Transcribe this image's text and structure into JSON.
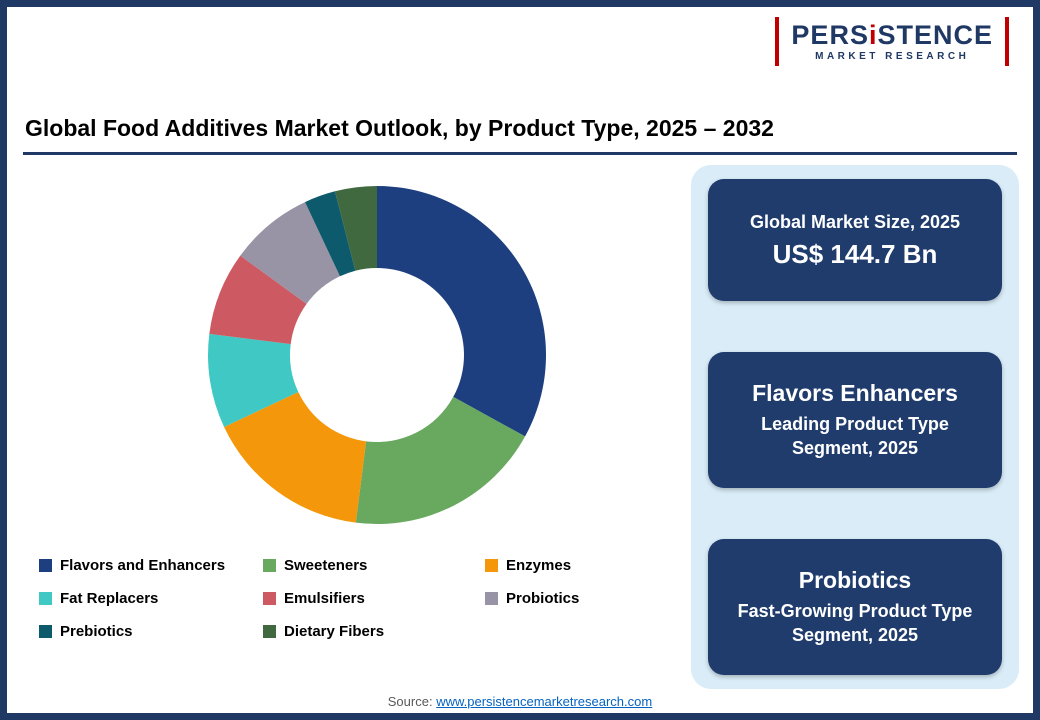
{
  "logo": {
    "part1": "PERS",
    "i_letter": "i",
    "part2": "STENCE",
    "subtitle": "MARKET RESEARCH"
  },
  "header": {
    "title": "Global Food Additives Market Outlook, by Product Type, 2025 – 2032"
  },
  "chart_data": {
    "type": "pie",
    "donut": true,
    "title": "Global Food Additives Market Outlook, by Product Type, 2025 – 2032",
    "categories": [
      "Flavors and Enhancers",
      "Sweeteners",
      "Enzymes",
      "Fat Replacers",
      "Emulsifiers",
      "Probiotics",
      "Prebiotics",
      "Dietary Fibers"
    ],
    "values": [
      33,
      19,
      16,
      9,
      8,
      8,
      3,
      4
    ],
    "colors": [
      "#1e3f7f",
      "#69a85f",
      "#f5970a",
      "#3fc8c4",
      "#cd5a62",
      "#9893a5",
      "#0e5a6d",
      "#41693f"
    ],
    "legend_position": "bottom",
    "start_angle_deg": 0,
    "direction": "clockwise"
  },
  "panel": {
    "boxes": [
      {
        "line1": "Global Market Size, 2025",
        "line2": "US$ 144.7 Bn"
      },
      {
        "line1": "Flavors Enhancers",
        "line2": "Leading Product Type Segment, 2025"
      },
      {
        "line1": "Probiotics",
        "line2": "Fast-Growing Product Type Segment, 2025"
      }
    ]
  },
  "footer": {
    "source_label": "Source: ",
    "link_text": "www.persistencemarketresearch.com"
  }
}
